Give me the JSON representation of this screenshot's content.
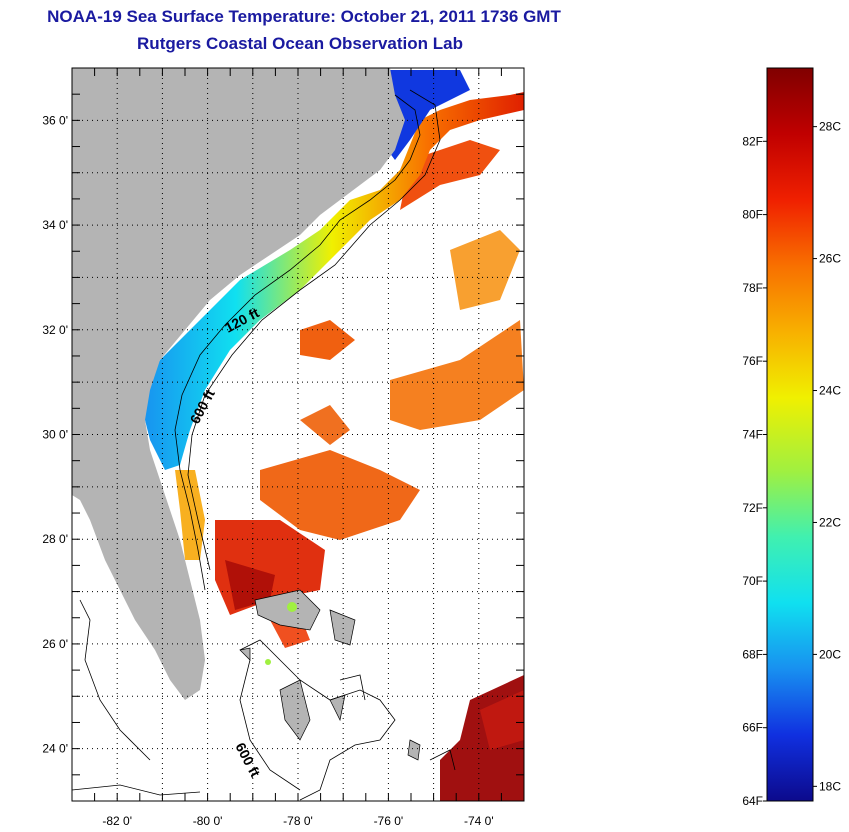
{
  "header": {
    "title": "NOAA-19 Sea Surface Temperature:  October 21, 2011 1736 GMT",
    "subtitle": "Rutgers Coastal Ocean Observation Lab"
  },
  "map": {
    "lon_range": [
      -83,
      -73
    ],
    "lat_range": [
      23,
      37
    ],
    "lat_ticks": [
      {
        "value": 36,
        "label": "36 0'"
      },
      {
        "value": 34,
        "label": "34 0'"
      },
      {
        "value": 32,
        "label": "32 0'"
      },
      {
        "value": 30,
        "label": "30 0'"
      },
      {
        "value": 28,
        "label": "28 0'"
      },
      {
        "value": 26,
        "label": "26 0'"
      },
      {
        "value": 24,
        "label": "24 0'"
      }
    ],
    "lon_ticks": [
      {
        "value": -82,
        "label": "-82 0'"
      },
      {
        "value": -80,
        "label": "-80 0'"
      },
      {
        "value": -78,
        "label": "-78 0'"
      },
      {
        "value": -76,
        "label": "-76 0'"
      },
      {
        "value": -74,
        "label": "-74 0'"
      }
    ],
    "contour_labels": {
      "c120": "120 ft",
      "c600a": "600 ft",
      "c600b": "600 ft"
    },
    "colors": {
      "land": "#b4b4b4",
      "ocean_no_data": "#ffffff",
      "frame": "#000000"
    }
  },
  "colorbar": {
    "range_f": [
      64,
      84
    ],
    "f_labels": [
      "82F",
      "80F",
      "78F",
      "76F",
      "74F",
      "72F",
      "70F",
      "68F",
      "66F",
      "64F"
    ],
    "c_labels": [
      "28C",
      "26C",
      "24C",
      "22C",
      "20C",
      "18C"
    ],
    "stops": [
      "#0c0a8c",
      "#1030e0",
      "#1890f0",
      "#10e0f0",
      "#40f0b0",
      "#a0f040",
      "#f0f000",
      "#f8b000",
      "#f87000",
      "#f02000",
      "#c00000",
      "#800000"
    ]
  }
}
